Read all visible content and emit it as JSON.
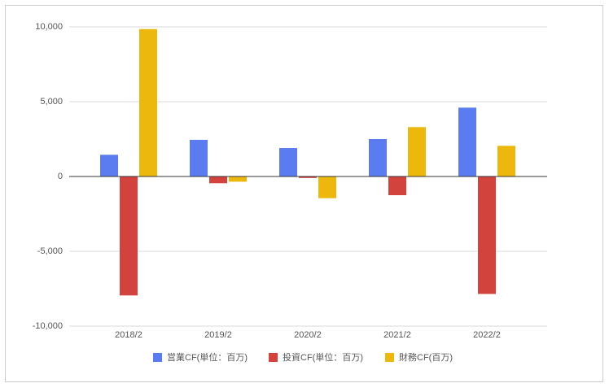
{
  "chart_data": {
    "type": "bar",
    "categories": [
      "2018/2",
      "2019/2",
      "2020/2",
      "2021/2",
      "2022/2"
    ],
    "series": [
      {
        "name": "営業CF(単位：百万)",
        "color": "#5b7cf0",
        "values": [
          1450,
          2450,
          1900,
          2500,
          4600
        ]
      },
      {
        "name": "投資CF(単位：百万)",
        "color": "#d2433d",
        "values": [
          -7950,
          -450,
          -100,
          -1250,
          -7850
        ]
      },
      {
        "name": "財務CF(百万)",
        "color": "#ecb80d",
        "values": [
          9850,
          -350,
          -1450,
          3300,
          2050
        ]
      }
    ],
    "ylim": [
      -10000,
      10000
    ],
    "yticks": [
      {
        "value": -10000,
        "label": "-10,000"
      },
      {
        "value": -5000,
        "label": "-5,000"
      },
      0,
      {
        "value": 5000,
        "label": "5,000"
      },
      {
        "value": 10000,
        "label": "10,000"
      }
    ],
    "grid": true,
    "legend": "bottom"
  }
}
